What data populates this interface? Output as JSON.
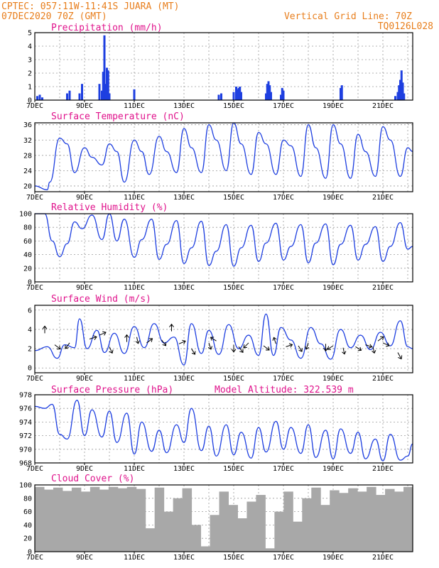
{
  "header": {
    "line1": "CPTEC:   057:11W-11:41S  JUARA (MT)",
    "line2": "07DEC2020 70Z (GMT)",
    "right1": "Vertical Grid Line: 70Z",
    "right2": "TQ0126L028",
    "model_altitude": "Model Altitude: 322.539 m"
  },
  "colors": {
    "header": "#e87e1c",
    "panel_title": "#e0138c",
    "line": "#1e3fe0",
    "cloud": "#a8a8a8"
  },
  "date_labels": [
    "7DEC",
    "9DEC",
    "11DEC",
    "13DEC",
    "15DEC",
    "17DEC",
    "19DEC",
    "21DEC"
  ],
  "chart_data": [
    {
      "type": "bar",
      "title": "Precipitation (mm/h)",
      "x_range": [
        7,
        22.2
      ],
      "ylim": [
        0,
        5
      ],
      "yticks": [
        "0",
        "1",
        "2",
        "3",
        "4",
        "5"
      ],
      "x": [
        7.1,
        7.2,
        7.3,
        8.3,
        8.4,
        8.8,
        8.9,
        9.6,
        9.7,
        9.75,
        9.8,
        9.85,
        9.9,
        9.95,
        10.0,
        11.0,
        14.4,
        14.5,
        15.0,
        15.1,
        15.15,
        15.2,
        15.25,
        15.3,
        16.3,
        16.35,
        16.4,
        16.45,
        16.5,
        16.9,
        16.95,
        17.0,
        19.3,
        19.35,
        21.5,
        21.6,
        21.65,
        21.7,
        21.75,
        21.8,
        21.85
      ],
      "values": [
        0.3,
        0.4,
        0.2,
        0.5,
        0.7,
        0.5,
        1.2,
        1.2,
        0.7,
        2.1,
        4.8,
        1.2,
        2.4,
        2.2,
        0.5,
        0.8,
        0.4,
        0.5,
        0.6,
        1.0,
        0.8,
        0.9,
        1.0,
        0.6,
        0.5,
        1.2,
        1.4,
        1.1,
        0.6,
        0.4,
        0.9,
        0.7,
        0.9,
        1.1,
        0.3,
        0.6,
        1.1,
        1.5,
        2.2,
        1.3,
        0.5
      ]
    },
    {
      "type": "line",
      "title": "Surface Temperature (nC)",
      "x_range": [
        7,
        22.2
      ],
      "ylim": [
        18.5,
        36.5
      ],
      "yticks": [
        "20",
        "24",
        "28",
        "32",
        "36"
      ],
      "x": [
        7.0,
        7.5,
        7.6,
        8.0,
        8.3,
        8.6,
        9.0,
        9.3,
        9.7,
        10.0,
        10.3,
        10.6,
        11.0,
        11.3,
        11.6,
        12.0,
        12.3,
        12.7,
        13.0,
        13.3,
        13.7,
        14.0,
        14.3,
        14.7,
        15.0,
        15.3,
        15.7,
        16.0,
        16.3,
        16.7,
        17.0,
        17.3,
        17.7,
        18.0,
        18.3,
        18.7,
        19.0,
        19.3,
        19.7,
        20.0,
        20.3,
        20.7,
        21.0,
        21.3,
        21.7,
        22.0,
        22.2
      ],
      "values": [
        20,
        19,
        21,
        32.5,
        31,
        23.5,
        30,
        27.5,
        25.5,
        31,
        29,
        21,
        32,
        29,
        23,
        33,
        29,
        23.5,
        35,
        30,
        23.5,
        36,
        32,
        24,
        36.5,
        31,
        23,
        34,
        31,
        23,
        32,
        30.5,
        22.5,
        36,
        30,
        22,
        36,
        31,
        22,
        33.5,
        29,
        22.5,
        35.5,
        32,
        22.5,
        30,
        29
      ]
    },
    {
      "type": "line",
      "title": "Relative Humidity (%)",
      "x_range": [
        7,
        22.2
      ],
      "ylim": [
        0,
        100
      ],
      "yticks": [
        "0",
        "20",
        "40",
        "60",
        "80",
        "100"
      ],
      "x": [
        7.0,
        7.4,
        7.7,
        8.0,
        8.3,
        8.6,
        8.9,
        9.3,
        9.7,
        10.0,
        10.3,
        10.6,
        11.0,
        11.3,
        11.7,
        12.0,
        12.3,
        12.7,
        13.0,
        13.3,
        13.7,
        14.0,
        14.3,
        14.7,
        15.0,
        15.3,
        15.7,
        16.0,
        16.3,
        16.7,
        17.0,
        17.3,
        17.7,
        18.0,
        18.3,
        18.7,
        19.0,
        19.3,
        19.7,
        20.0,
        20.3,
        20.7,
        21.0,
        21.3,
        21.7,
        22.0,
        22.2
      ],
      "values": [
        100,
        100,
        60,
        37,
        56,
        88,
        78,
        98,
        62,
        100,
        60,
        92,
        36,
        62,
        92,
        33,
        55,
        90,
        27,
        50,
        89,
        24,
        45,
        84,
        23,
        50,
        83,
        30,
        57,
        86,
        32,
        52,
        84,
        28,
        57,
        85,
        25,
        55,
        83,
        32,
        55,
        81,
        30,
        52,
        87,
        48,
        52
      ]
    },
    {
      "type": "line",
      "title": "Surface Wind (m/s)",
      "x_range": [
        7,
        22.2
      ],
      "ylim": [
        -0.5,
        6.5
      ],
      "yticks": [
        "0",
        "2",
        "4",
        "6"
      ],
      "x": [
        7.0,
        7.5,
        7.9,
        8.2,
        8.6,
        8.8,
        9.1,
        9.5,
        9.8,
        10.2,
        10.6,
        11.0,
        11.4,
        11.8,
        12.2,
        12.6,
        13.0,
        13.3,
        13.7,
        14.0,
        14.4,
        14.8,
        15.2,
        15.6,
        16.0,
        16.3,
        16.6,
        16.9,
        17.3,
        17.7,
        18.1,
        18.5,
        18.9,
        19.3,
        19.7,
        20.1,
        20.5,
        20.9,
        21.3,
        21.7,
        22.0,
        22.2
      ],
      "values": [
        1.8,
        2.2,
        1.0,
        2.4,
        2.1,
        5.1,
        2.0,
        3.9,
        1.6,
        3.6,
        1.5,
        4.3,
        2.1,
        4.6,
        2.6,
        3.2,
        0.3,
        4.6,
        1.5,
        3.9,
        1.4,
        4.5,
        2.0,
        3.4,
        1.3,
        5.6,
        1.3,
        4.2,
        2.9,
        1.0,
        4.2,
        2.5,
        0.9,
        4.0,
        2.1,
        3.4,
        1.9,
        3.7,
        2.3,
        4.9,
        2.2,
        2.0
      ]
    },
    {
      "type": "line",
      "title": "Surface Pressure (hPa)",
      "x_range": [
        7,
        22.2
      ],
      "ylim": [
        968,
        978
      ],
      "yticks": [
        "968",
        "970",
        "972",
        "974",
        "976",
        "978"
      ],
      "x": [
        7.0,
        7.4,
        7.7,
        8.0,
        8.3,
        8.7,
        9.0,
        9.3,
        9.7,
        10.0,
        10.3,
        10.7,
        11.0,
        11.3,
        11.7,
        12.0,
        12.3,
        12.7,
        13.0,
        13.3,
        13.7,
        14.0,
        14.3,
        14.7,
        15.0,
        15.3,
        15.7,
        16.0,
        16.3,
        16.7,
        17.0,
        17.3,
        17.7,
        18.0,
        18.3,
        18.7,
        19.0,
        19.3,
        19.7,
        20.0,
        20.3,
        20.7,
        21.0,
        21.3,
        21.7,
        22.0,
        22.2
      ],
      "values": [
        976.3,
        976.0,
        976.6,
        972.2,
        971.5,
        977.2,
        972.0,
        975.8,
        971.8,
        975.6,
        971.0,
        975.3,
        969.3,
        974.0,
        969.7,
        972.8,
        969.5,
        973.6,
        971.0,
        976.0,
        969.8,
        973.4,
        969.0,
        973.6,
        969.2,
        972.5,
        968.7,
        973.2,
        969.6,
        974.1,
        970.0,
        973.2,
        969.4,
        973.6,
        968.8,
        972.8,
        968.6,
        973.0,
        969.4,
        972.5,
        968.6,
        971.5,
        968.3,
        972.2,
        968.4,
        969.0,
        970.8
      ]
    },
    {
      "type": "bar",
      "title": "Cloud Cover (%)",
      "x_range": [
        7,
        22.2
      ],
      "ylim": [
        0,
        100
      ],
      "yticks": [
        "0",
        "20",
        "40",
        "60",
        "80",
        "100"
      ],
      "x": [
        7.0,
        7.5,
        8.0,
        8.5,
        9.0,
        9.5,
        10.0,
        10.5,
        11.0,
        11.5,
        12.0,
        12.5,
        12.8,
        13.0,
        13.3,
        13.6,
        13.9,
        14.1,
        14.3,
        14.5,
        14.7,
        14.9,
        15.2,
        15.5,
        15.8,
        16.0,
        16.2,
        16.4,
        16.7,
        17.0,
        17.3,
        17.6,
        18.0,
        18.5,
        19.0,
        19.5,
        20.0,
        20.5,
        21.0,
        21.5,
        22.0
      ],
      "values": [
        97,
        93,
        96,
        91,
        96,
        90,
        97,
        93,
        97,
        95,
        97,
        94,
        35,
        96,
        60,
        80,
        95,
        40,
        8,
        55,
        90,
        70,
        50,
        75,
        85,
        5,
        60,
        90,
        45,
        80,
        96,
        70,
        92,
        88,
        95,
        90,
        97,
        85,
        94,
        90,
        97
      ]
    }
  ]
}
